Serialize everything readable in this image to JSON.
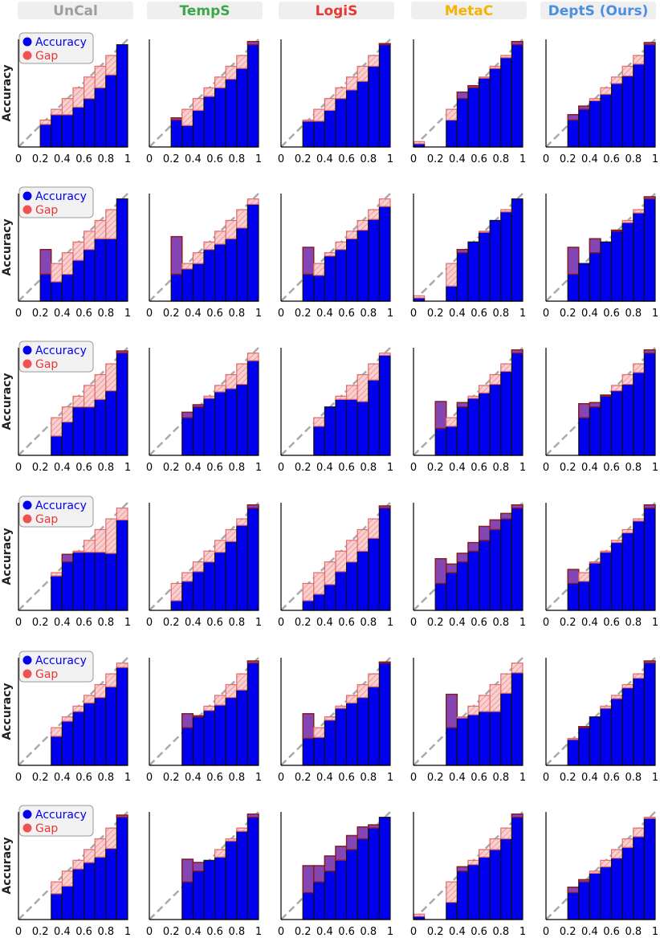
{
  "figure": {
    "columns": [
      {
        "label": "UnCal",
        "color": "#9e9e9e"
      },
      {
        "label": "TempS",
        "color": "#3aa84a"
      },
      {
        "label": "LogiS",
        "color": "#e53935"
      },
      {
        "label": "MetaC",
        "color": "#f5b400"
      },
      {
        "label": "DeptS (Ours)",
        "color": "#4a8fe0"
      }
    ],
    "ylabel": "Accuracy",
    "legend": {
      "accuracy": "Accuracy",
      "gap": "Gap",
      "position": "top-left"
    },
    "x_ticks": [
      "0",
      "0.2",
      "0.4",
      "0.6",
      "0.8",
      "1"
    ],
    "colors": {
      "accuracy": "#0000ee",
      "gap_fill": "#f8c6c6",
      "gap_edge": "#e36a6a",
      "over_fill": "#8a4ab0",
      "over_edge": "#8b1a1a",
      "diagonal": "#aaaaaa"
    }
  },
  "chart_data": {
    "type": "bar",
    "bins": [
      0.05,
      0.15,
      0.25,
      0.35,
      0.45,
      0.55,
      0.65,
      0.75,
      0.85,
      0.95
    ],
    "xlim": [
      0,
      1
    ],
    "ylim": [
      0,
      1
    ],
    "series": [
      {
        "row": 1,
        "col": "UnCal",
        "values": [
          null,
          null,
          0.21,
          0.3,
          0.3,
          0.37,
          0.45,
          0.55,
          0.67,
          0.95
        ]
      },
      {
        "row": 1,
        "col": "TempS",
        "values": [
          null,
          null,
          0.27,
          0.2,
          0.34,
          0.47,
          0.55,
          0.63,
          0.73,
          0.98
        ]
      },
      {
        "row": 1,
        "col": "LogiS",
        "values": [
          null,
          null,
          0.24,
          0.24,
          0.34,
          0.45,
          0.53,
          0.61,
          0.75,
          0.96
        ]
      },
      {
        "row": 1,
        "col": "MetaC",
        "values": [
          0.03,
          null,
          null,
          0.25,
          0.51,
          0.57,
          0.64,
          0.73,
          0.83,
          0.98
        ]
      },
      {
        "row": 1,
        "col": "DeptS (Ours)",
        "values": [
          null,
          null,
          0.3,
          0.38,
          0.43,
          0.49,
          0.59,
          0.66,
          0.77,
          0.97
        ]
      },
      {
        "row": 2,
        "col": "UnCal",
        "values": [
          null,
          null,
          0.48,
          0.18,
          0.25,
          0.38,
          0.48,
          0.58,
          0.58,
          0.95
        ]
      },
      {
        "row": 2,
        "col": "TempS",
        "values": [
          null,
          null,
          0.6,
          0.3,
          0.35,
          0.48,
          0.53,
          0.58,
          0.68,
          0.9
        ]
      },
      {
        "row": 2,
        "col": "LogiS",
        "values": [
          null,
          null,
          0.5,
          0.24,
          0.42,
          0.48,
          0.58,
          0.66,
          0.76,
          0.88
        ]
      },
      {
        "row": 2,
        "col": "MetaC",
        "values": [
          0.03,
          null,
          null,
          0.14,
          0.48,
          0.55,
          0.64,
          0.75,
          0.83,
          0.95
        ]
      },
      {
        "row": 2,
        "col": "DeptS (Ours)",
        "values": [
          null,
          null,
          0.5,
          0.35,
          0.58,
          0.55,
          0.66,
          0.73,
          0.82,
          0.97
        ]
      },
      {
        "row": 3,
        "col": "UnCal",
        "values": [
          null,
          null,
          null,
          0.18,
          0.31,
          0.45,
          0.45,
          0.52,
          0.6,
          0.97
        ]
      },
      {
        "row": 3,
        "col": "TempS",
        "values": [
          null,
          null,
          null,
          0.4,
          0.47,
          0.53,
          0.59,
          0.62,
          0.66,
          0.88
        ]
      },
      {
        "row": 3,
        "col": "LogiS",
        "values": [
          null,
          null,
          null,
          0.27,
          0.45,
          0.52,
          0.52,
          0.5,
          0.7,
          0.93
        ]
      },
      {
        "row": 3,
        "col": "MetaC",
        "values": [
          null,
          null,
          0.5,
          0.27,
          0.49,
          0.53,
          0.58,
          0.66,
          0.78,
          0.98
        ]
      },
      {
        "row": 3,
        "col": "DeptS (Ours)",
        "values": [
          null,
          null,
          null,
          0.48,
          0.49,
          0.56,
          0.6,
          0.66,
          0.77,
          0.98
        ]
      },
      {
        "row": 4,
        "col": "UnCal",
        "values": [
          null,
          null,
          null,
          0.32,
          0.52,
          0.54,
          0.54,
          0.54,
          0.53,
          0.84
        ]
      },
      {
        "row": 4,
        "col": "TempS",
        "values": [
          null,
          null,
          0.09,
          0.27,
          0.36,
          0.45,
          0.54,
          0.64,
          0.79,
          0.98
        ]
      },
      {
        "row": 4,
        "col": "LogiS",
        "values": [
          null,
          null,
          0.09,
          0.15,
          0.24,
          0.36,
          0.45,
          0.55,
          0.67,
          0.97
        ]
      },
      {
        "row": 4,
        "col": "MetaC",
        "values": [
          null,
          null,
          0.48,
          0.43,
          0.53,
          0.63,
          0.78,
          0.84,
          0.9,
          0.98
        ]
      },
      {
        "row": 4,
        "col": "DeptS (Ours)",
        "values": [
          null,
          null,
          0.38,
          0.27,
          0.44,
          0.54,
          0.63,
          0.72,
          0.83,
          0.98
        ]
      },
      {
        "row": 5,
        "col": "UnCal",
        "values": [
          null,
          null,
          null,
          0.27,
          0.41,
          0.5,
          0.58,
          0.63,
          0.73,
          0.91
        ]
      },
      {
        "row": 5,
        "col": "TempS",
        "values": [
          null,
          null,
          null,
          0.48,
          0.46,
          0.51,
          0.56,
          0.63,
          0.7,
          0.97
        ]
      },
      {
        "row": 5,
        "col": "LogiS",
        "values": [
          null,
          null,
          0.48,
          0.26,
          0.42,
          0.53,
          0.58,
          0.63,
          0.73,
          0.96
        ]
      },
      {
        "row": 5,
        "col": "MetaC",
        "values": [
          null,
          null,
          null,
          0.66,
          0.44,
          0.47,
          0.5,
          0.5,
          0.67,
          0.86
        ]
      },
      {
        "row": 5,
        "col": "DeptS (Ours)",
        "values": [
          null,
          null,
          0.24,
          0.36,
          0.45,
          0.53,
          0.62,
          0.72,
          0.81,
          0.97
        ]
      },
      {
        "row": 6,
        "col": "UnCal",
        "values": [
          null,
          null,
          null,
          0.24,
          0.31,
          0.47,
          0.53,
          0.58,
          0.66,
          0.97
        ]
      },
      {
        "row": 6,
        "col": "TempS",
        "values": [
          null,
          null,
          null,
          0.56,
          0.53,
          0.55,
          0.58,
          0.73,
          0.82,
          0.98
        ]
      },
      {
        "row": 6,
        "col": "LogiS",
        "values": [
          null,
          null,
          0.5,
          0.5,
          0.59,
          0.68,
          0.78,
          0.86,
          0.88,
          0.95
        ]
      },
      {
        "row": 6,
        "col": "MetaC",
        "values": [
          0.03,
          null,
          null,
          0.16,
          0.49,
          0.51,
          0.58,
          0.65,
          0.75,
          0.98
        ]
      },
      {
        "row": 6,
        "col": "DeptS (Ours)",
        "values": [
          null,
          null,
          0.3,
          0.37,
          0.43,
          0.49,
          0.57,
          0.67,
          0.77,
          0.94
        ]
      }
    ]
  }
}
